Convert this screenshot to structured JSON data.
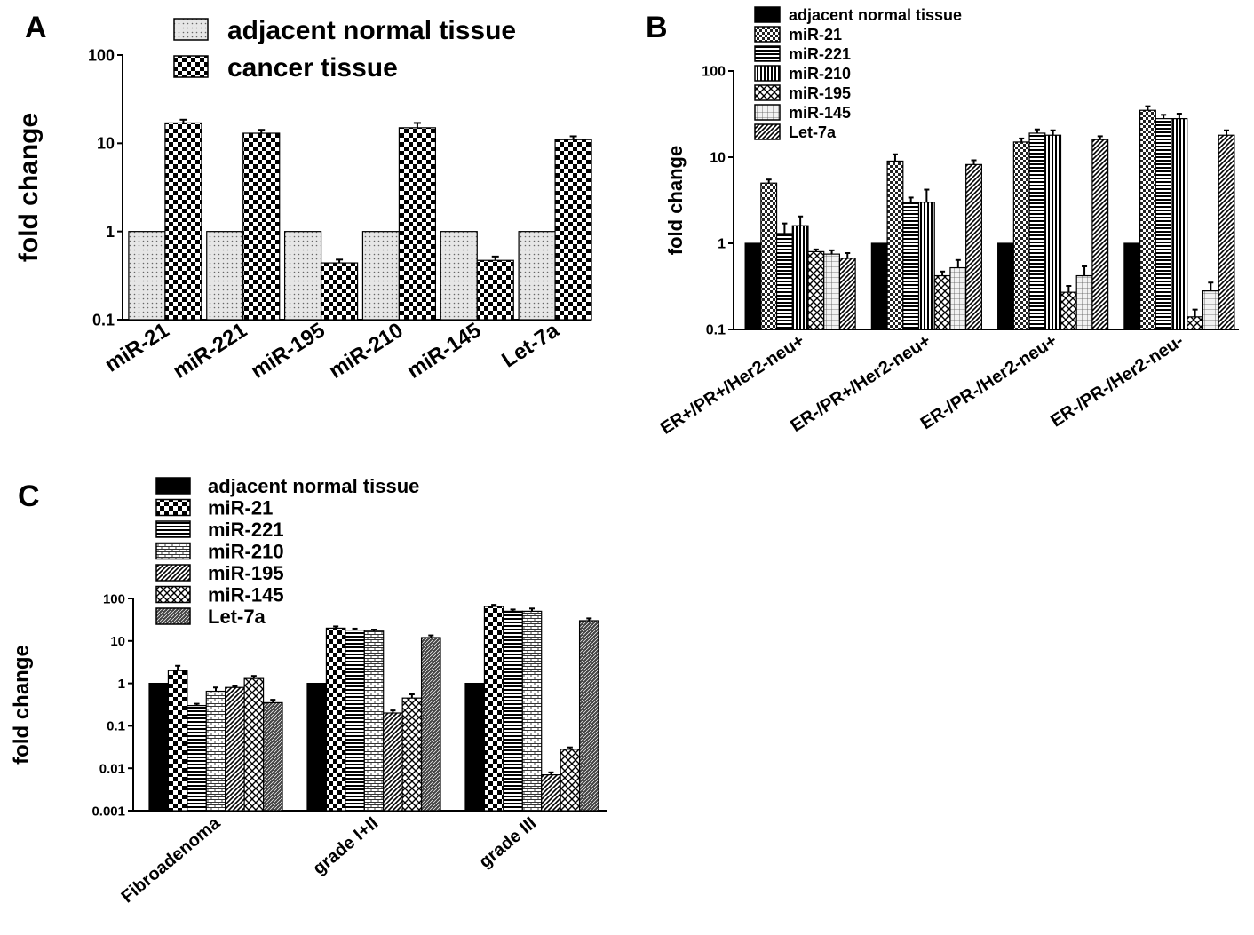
{
  "panel_labels": [
    "A",
    "B",
    "C"
  ],
  "chart_data": [
    {
      "panel": "A",
      "type": "bar",
      "ylabel": "fold change",
      "xlabel": "",
      "scale": "log",
      "ylim": [
        0.1,
        100
      ],
      "yticks": [
        "0.1",
        "1",
        "10",
        "100"
      ],
      "categories": [
        "miR-21",
        "miR-221",
        "miR-195",
        "miR-210",
        "miR-145",
        "Let-7a"
      ],
      "legend_placement": "top",
      "series": [
        {
          "name": "adjacent normal tissue",
          "pattern": "dots",
          "values": [
            1,
            1,
            1,
            1,
            1,
            1
          ],
          "errors": [
            0,
            0,
            0,
            0,
            0,
            0
          ]
        },
        {
          "name": "cancer tissue",
          "pattern": "checker",
          "values": [
            17,
            13,
            0.44,
            15,
            0.47,
            11
          ],
          "errors": [
            1.5,
            1.2,
            0.04,
            2,
            0.05,
            1
          ]
        }
      ]
    },
    {
      "panel": "B",
      "type": "bar",
      "ylabel": "fold change",
      "xlabel": "",
      "scale": "log",
      "ylim": [
        0.1,
        100
      ],
      "yticks": [
        "0.1",
        "1",
        "10",
        "100"
      ],
      "categories": [
        "ER+/PR+/Her2-neu+",
        "ER-/PR+/Her2-neu+",
        "ER-/PR-/Her2-neu+",
        "ER-/PR-/Her2-neu-"
      ],
      "legend_placement": "top-left",
      "series": [
        {
          "name": "adjacent normal tissue",
          "pattern": "solid",
          "values": [
            1,
            1,
            1,
            1
          ],
          "errors": [
            0,
            0,
            0,
            0
          ]
        },
        {
          "name": "miR-21",
          "pattern": "checker-fine",
          "values": [
            5,
            9,
            15,
            35
          ],
          "errors": [
            0.5,
            1.8,
            1.5,
            4
          ]
        },
        {
          "name": "miR-221",
          "pattern": "hlines",
          "values": [
            1.3,
            3,
            19,
            28
          ],
          "errors": [
            0.4,
            0.4,
            2,
            3
          ]
        },
        {
          "name": "miR-210",
          "pattern": "vlines",
          "values": [
            1.6,
            3,
            18,
            28
          ],
          "errors": [
            0.45,
            1.2,
            2.5,
            4
          ]
        },
        {
          "name": "miR-195",
          "pattern": "crosshatch",
          "values": [
            0.8,
            0.42,
            0.27,
            0.14
          ],
          "errors": [
            0.05,
            0.05,
            0.05,
            0.03
          ]
        },
        {
          "name": "miR-145",
          "pattern": "grid",
          "values": [
            0.75,
            0.52,
            0.42,
            0.28
          ],
          "errors": [
            0.08,
            0.12,
            0.12,
            0.07
          ]
        },
        {
          "name": "Let-7a",
          "pattern": "diag",
          "values": [
            0.67,
            8.2,
            16,
            18
          ],
          "errors": [
            0.1,
            1,
            1.5,
            2.5
          ]
        }
      ]
    },
    {
      "panel": "C",
      "type": "bar",
      "ylabel": "fold change",
      "xlabel": "",
      "scale": "log",
      "ylim": [
        0.001,
        100
      ],
      "yticks": [
        "0.001",
        "0.01",
        "0.1",
        "1",
        "10",
        "100"
      ],
      "categories": [
        "Fibroadenoma",
        "grade I+II",
        "grade III"
      ],
      "legend_placement": "top-left",
      "series": [
        {
          "name": "adjacent normal tissue",
          "pattern": "solid",
          "values": [
            1,
            1,
            1
          ],
          "errors": [
            0,
            0,
            0
          ]
        },
        {
          "name": "miR-21",
          "pattern": "checker",
          "values": [
            2,
            20,
            65
          ],
          "errors": [
            0.6,
            2,
            6
          ]
        },
        {
          "name": "miR-221",
          "pattern": "hlines",
          "values": [
            0.3,
            18,
            50
          ],
          "errors": [
            0.03,
            1.5,
            5
          ]
        },
        {
          "name": "miR-210",
          "pattern": "bricks",
          "values": [
            0.65,
            17,
            50
          ],
          "errors": [
            0.15,
            1.5,
            8
          ]
        },
        {
          "name": "miR-195",
          "pattern": "diag",
          "values": [
            0.8,
            0.2,
            0.007
          ],
          "errors": [
            0.05,
            0.03,
            0.001
          ]
        },
        {
          "name": "miR-145",
          "pattern": "crosshatch",
          "values": [
            1.3,
            0.45,
            0.028
          ],
          "errors": [
            0.2,
            0.1,
            0.003
          ]
        },
        {
          "name": "Let-7a",
          "pattern": "diag-dense",
          "values": [
            0.35,
            12,
            30
          ],
          "errors": [
            0.06,
            1.5,
            4
          ]
        }
      ]
    }
  ]
}
